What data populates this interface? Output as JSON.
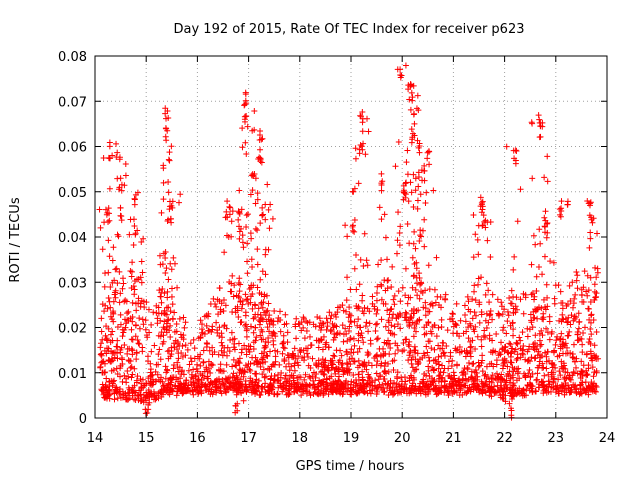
{
  "chart_data": {
    "type": "scatter",
    "title": "Day 192 of 2015, Rate Of TEC Index for receiver p623",
    "xlabel": "GPS time / hours",
    "ylabel": "ROTI / TECUs",
    "xlim": [
      14,
      24
    ],
    "ylim": [
      0,
      0.08
    ],
    "xticks": [
      "14",
      "15",
      "16",
      "17",
      "18",
      "19",
      "20",
      "21",
      "22",
      "23",
      "24"
    ],
    "yticks": [
      "0",
      "0.01",
      "0.02",
      "0.03",
      "0.04",
      "0.05",
      "0.06",
      "0.07",
      "0.08"
    ],
    "grid": true,
    "marker": "+",
    "color": "#ff0000",
    "note": "Thousands of '+' points; the dense cloud is summarized by the typical-band profile and the listed peak clusters (values in data units).",
    "band_profile": {
      "x": [
        14.1,
        14.5,
        15.0,
        15.5,
        16.0,
        16.5,
        17.0,
        17.5,
        18.0,
        18.5,
        19.0,
        19.5,
        20.0,
        20.5,
        21.0,
        21.5,
        22.0,
        22.5,
        23.0,
        23.5,
        23.8
      ],
      "low": [
        0.005,
        0.005,
        0.004,
        0.006,
        0.006,
        0.006,
        0.006,
        0.006,
        0.006,
        0.006,
        0.006,
        0.006,
        0.006,
        0.006,
        0.006,
        0.006,
        0.005,
        0.006,
        0.006,
        0.006,
        0.006
      ],
      "high": [
        0.026,
        0.034,
        0.03,
        0.024,
        0.02,
        0.03,
        0.033,
        0.024,
        0.022,
        0.024,
        0.026,
        0.03,
        0.034,
        0.03,
        0.026,
        0.03,
        0.026,
        0.028,
        0.03,
        0.032,
        0.03
      ]
    },
    "peaks": [
      {
        "x": 14.3,
        "y": 0.061
      },
      {
        "x": 14.45,
        "y": 0.061
      },
      {
        "x": 14.5,
        "y": 0.053
      },
      {
        "x": 14.25,
        "y": 0.047
      },
      {
        "x": 14.8,
        "y": 0.05
      },
      {
        "x": 14.8,
        "y": 0.044
      },
      {
        "x": 15.4,
        "y": 0.069
      },
      {
        "x": 15.4,
        "y": 0.065
      },
      {
        "x": 15.5,
        "y": 0.05
      },
      {
        "x": 15.45,
        "y": 0.047
      },
      {
        "x": 16.6,
        "y": 0.048
      },
      {
        "x": 16.8,
        "y": 0.046
      },
      {
        "x": 16.95,
        "y": 0.073
      },
      {
        "x": 16.95,
        "y": 0.067
      },
      {
        "x": 17.1,
        "y": 0.054
      },
      {
        "x": 17.25,
        "y": 0.064
      },
      {
        "x": 17.2,
        "y": 0.06
      },
      {
        "x": 17.3,
        "y": 0.048
      },
      {
        "x": 19.2,
        "y": 0.068
      },
      {
        "x": 19.2,
        "y": 0.062
      },
      {
        "x": 19.05,
        "y": 0.044
      },
      {
        "x": 19.6,
        "y": 0.054
      },
      {
        "x": 19.95,
        "y": 0.078
      },
      {
        "x": 20.15,
        "y": 0.074
      },
      {
        "x": 20.2,
        "y": 0.071
      },
      {
        "x": 20.05,
        "y": 0.052
      },
      {
        "x": 20.2,
        "y": 0.065
      },
      {
        "x": 20.3,
        "y": 0.062
      },
      {
        "x": 20.5,
        "y": 0.06
      },
      {
        "x": 20.4,
        "y": 0.056
      },
      {
        "x": 21.55,
        "y": 0.05
      },
      {
        "x": 21.6,
        "y": 0.046
      },
      {
        "x": 22.2,
        "y": 0.06
      },
      {
        "x": 22.7,
        "y": 0.068
      },
      {
        "x": 22.7,
        "y": 0.066
      },
      {
        "x": 22.8,
        "y": 0.044
      },
      {
        "x": 23.1,
        "y": 0.048
      },
      {
        "x": 23.65,
        "y": 0.05
      },
      {
        "x": 23.7,
        "y": 0.045
      },
      {
        "x": 22.1,
        "y": 0.003
      },
      {
        "x": 16.75,
        "y": 0.003
      },
      {
        "x": 15.0,
        "y": 0.003
      }
    ]
  }
}
